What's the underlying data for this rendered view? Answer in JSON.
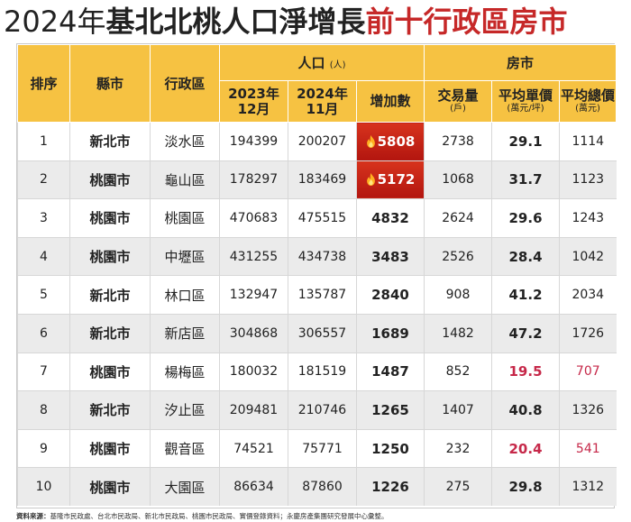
{
  "title": {
    "year": "2024年",
    "black": "基北北桃人口淨增長",
    "red": "前十行政區房市"
  },
  "headers": {
    "rank": "排序",
    "city": "縣市",
    "district": "行政區",
    "population": "人口",
    "population_unit": "(人)",
    "dec_2023_line1": "2023年",
    "dec_2023_line2": "12月",
    "nov_2024_line1": "2024年",
    "nov_2024_line2": "11月",
    "increase": "增加數",
    "housing": "房市",
    "transactions": "交易量",
    "transactions_unit": "(戶)",
    "avg_unit_price": "平均單價",
    "avg_unit_price_unit": "(萬元/坪)",
    "avg_total_price": "平均總價",
    "avg_total_price_unit": "(萬元)"
  },
  "rows": [
    {
      "rank": "1",
      "city": "新北市",
      "district": "淡水區",
      "pop2023": "194399",
      "pop2024": "200207",
      "increase": "5808",
      "transactions": "2738",
      "unit_price": "29.1",
      "total_price": "1114"
    },
    {
      "rank": "2",
      "city": "桃園市",
      "district": "龜山區",
      "pop2023": "178297",
      "pop2024": "183469",
      "increase": "5172",
      "transactions": "1068",
      "unit_price": "31.7",
      "total_price": "1123"
    },
    {
      "rank": "3",
      "city": "桃園市",
      "district": "桃園區",
      "pop2023": "470683",
      "pop2024": "475515",
      "increase": "4832",
      "transactions": "2624",
      "unit_price": "29.6",
      "total_price": "1243"
    },
    {
      "rank": "4",
      "city": "桃園市",
      "district": "中壢區",
      "pop2023": "431255",
      "pop2024": "434738",
      "increase": "3483",
      "transactions": "2526",
      "unit_price": "28.4",
      "total_price": "1042"
    },
    {
      "rank": "5",
      "city": "新北市",
      "district": "林口區",
      "pop2023": "132947",
      "pop2024": "135787",
      "increase": "2840",
      "transactions": "908",
      "unit_price": "41.2",
      "total_price": "2034"
    },
    {
      "rank": "6",
      "city": "新北市",
      "district": "新店區",
      "pop2023": "304868",
      "pop2024": "306557",
      "increase": "1689",
      "transactions": "1482",
      "unit_price": "47.2",
      "total_price": "1726"
    },
    {
      "rank": "7",
      "city": "桃園市",
      "district": "楊梅區",
      "pop2023": "180032",
      "pop2024": "181519",
      "increase": "1487",
      "transactions": "852",
      "unit_price": "19.5",
      "total_price": "707"
    },
    {
      "rank": "8",
      "city": "新北市",
      "district": "汐止區",
      "pop2023": "209481",
      "pop2024": "210746",
      "increase": "1265",
      "transactions": "1407",
      "unit_price": "40.8",
      "total_price": "1326"
    },
    {
      "rank": "9",
      "city": "桃園市",
      "district": "觀音區",
      "pop2023": "74521",
      "pop2024": "75771",
      "increase": "1250",
      "transactions": "232",
      "unit_price": "20.4",
      "total_price": "541"
    },
    {
      "rank": "10",
      "city": "桃園市",
      "district": "大園區",
      "pop2023": "86634",
      "pop2024": "87860",
      "increase": "1226",
      "transactions": "275",
      "unit_price": "29.8",
      "total_price": "1312"
    }
  ],
  "highlights": {
    "fire_icon": "fire-icon",
    "top_increase_color": "#c62828",
    "low_price_text_color": "#c62849",
    "header_color": "#f6c242"
  },
  "footer": {
    "label": "資料來源：",
    "text": "基隆市民政處、台北市民政局、新北市民政局、桃園市民政局、實價登錄資料；永慶房產集團研究發展中心彙整。"
  }
}
